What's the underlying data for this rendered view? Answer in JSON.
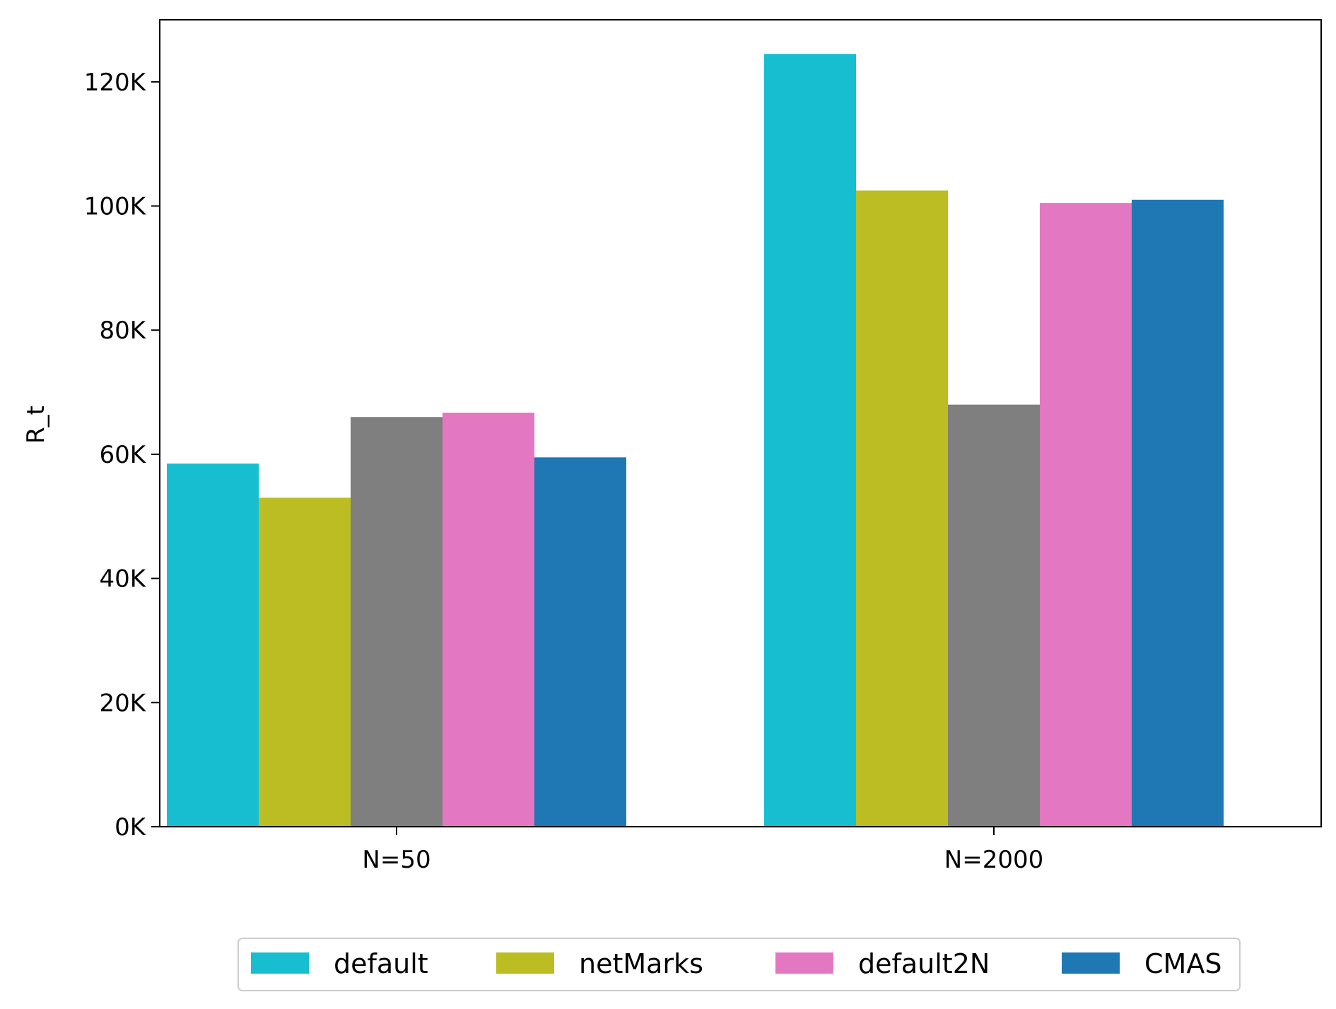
{
  "chart_data": {
    "type": "bar",
    "title": "",
    "xlabel": "",
    "ylabel": "R_t",
    "categories": [
      "N=50",
      "N=2000"
    ],
    "ylim": [
      0,
      130000
    ],
    "yticks": [
      0,
      20000,
      40000,
      60000,
      80000,
      100000,
      120000
    ],
    "ytick_labels": [
      "0K",
      "20K",
      "40K",
      "60K",
      "80K",
      "100K",
      "120K"
    ],
    "grid": false,
    "legend_position": "bottom-center",
    "series": [
      {
        "name": "default",
        "color": "#17becf",
        "values": [
          58500,
          124500
        ]
      },
      {
        "name": "netMarks",
        "color": "#bcbd22",
        "values": [
          53000,
          102500
        ]
      },
      {
        "name": "",
        "color": "#7f7f7f",
        "values": [
          66000,
          68000
        ]
      },
      {
        "name": "default2N",
        "color": "#e377c2",
        "values": [
          66700,
          100500
        ]
      },
      {
        "name": "CMAS",
        "color": "#1f77b4",
        "values": [
          59500,
          101000
        ]
      }
    ],
    "legend": [
      "default",
      "netMarks",
      "default2N",
      "CMAS"
    ]
  }
}
